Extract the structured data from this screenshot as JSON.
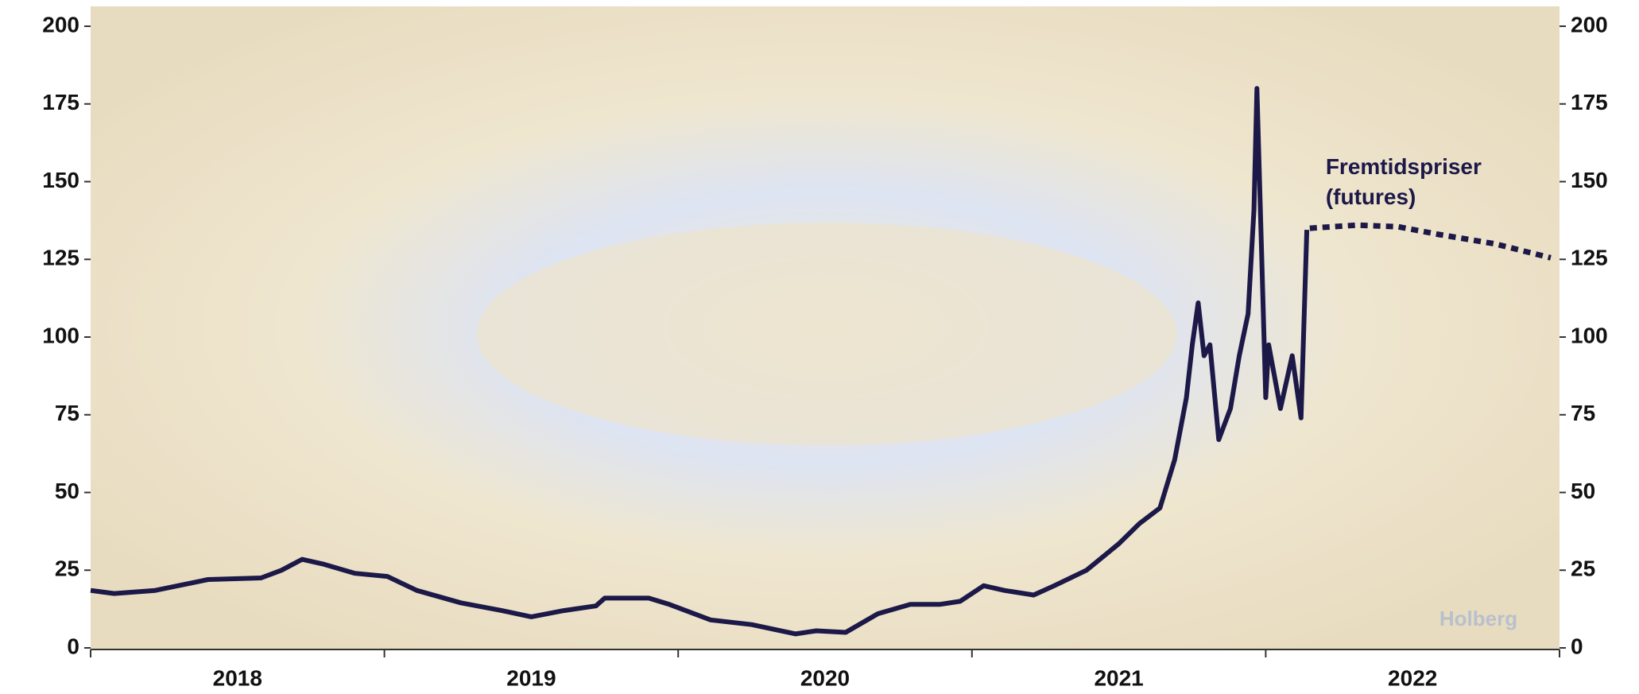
{
  "chart_data": {
    "type": "line",
    "xlim": [
      2018,
      2023
    ],
    "xticks": [
      2018,
      2019,
      2020,
      2021,
      2022,
      2023
    ],
    "x_categories": [
      "2018",
      "2019",
      "2020",
      "2021",
      "2022"
    ],
    "ylim": [
      0,
      200
    ],
    "yticks": [
      0,
      25,
      50,
      75,
      100,
      125,
      150,
      175,
      200
    ],
    "y2lim": [
      0,
      200
    ],
    "y2ticks": [
      0,
      25,
      50,
      75,
      100,
      125,
      150,
      175,
      200
    ],
    "series": [
      {
        "color": "#1c1848",
        "style": "solid",
        "x": [
          2018.0,
          2018.08,
          2018.22,
          2018.4,
          2018.58,
          2018.65,
          2018.72,
          2018.79,
          2018.9,
          2019.01,
          2019.11,
          2019.26,
          2019.4,
          2019.5,
          2019.61,
          2019.72,
          2019.75,
          2019.9,
          2019.97,
          2020.11,
          2020.25,
          2020.4,
          2020.47,
          2020.57,
          2020.68,
          2020.79,
          2020.89,
          2020.96,
          2021.04,
          2021.11,
          2021.21,
          2021.28,
          2021.39,
          2021.5,
          2021.57,
          2021.64,
          2021.69,
          2021.73,
          2021.75,
          2021.77,
          2021.79,
          2021.81,
          2021.84,
          2021.88,
          2021.91,
          2021.94,
          2021.96,
          2021.97,
          2022.0,
          2022.01,
          2022.05,
          2022.09,
          2022.12,
          2022.14
        ],
        "values": [
          18.5,
          17.5,
          18.5,
          22,
          22.5,
          25,
          28.5,
          27,
          24,
          23,
          18.5,
          14.5,
          12,
          10,
          12,
          13.5,
          16,
          16,
          14,
          9,
          7.5,
          4.5,
          5.5,
          5,
          11,
          14,
          14,
          15,
          20,
          18.5,
          17,
          20,
          25,
          33.5,
          40,
          45,
          60.5,
          80.5,
          97.5,
          111,
          94,
          97.5,
          67,
          77,
          94,
          107.5,
          141,
          180,
          80.5,
          97.5,
          77,
          94,
          74,
          134.5
        ]
      },
      {
        "name": "Fremtidspriser (futures)",
        "color": "#1c1848",
        "style": "dotted",
        "x": [
          2022.15,
          2022.31,
          2022.45,
          2022.59,
          2022.78,
          2022.97
        ],
        "values": [
          135,
          136,
          135.5,
          133,
          130,
          125.5
        ]
      }
    ],
    "watermark": "Holberg"
  }
}
